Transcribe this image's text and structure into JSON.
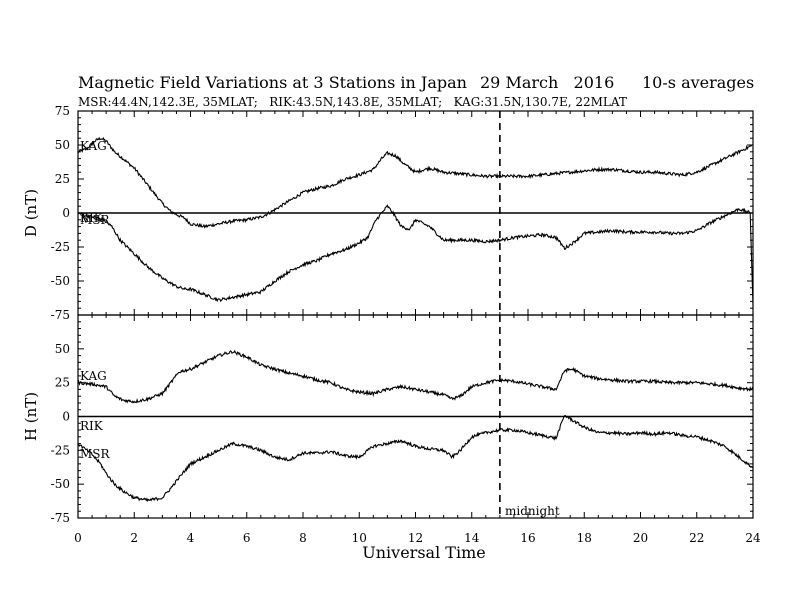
{
  "chart_data": {
    "type": "line",
    "title": "Magnetic Field Variations at 3 Stations in Japan",
    "date": "29 March   2016",
    "averaging": "10-s averages",
    "subtitle": "MSR:44.4N,142.3E, 35MLAT;   RIK:43.5N,143.8E, 35MLAT;   KAG:31.5N,130.7E, 22MLAT",
    "xlabel": "Universal Time",
    "xlim": [
      0,
      24
    ],
    "xticks": [
      "0",
      "2",
      "4",
      "6",
      "8",
      "10",
      "12",
      "14",
      "16",
      "18",
      "20",
      "22",
      "24"
    ],
    "annotation": {
      "x": 15,
      "label": "midnight"
    },
    "panels": [
      {
        "ylabel": "D (nT)",
        "ylim": [
          -75,
          75
        ],
        "yticks": [
          "75",
          "50",
          "25",
          "0",
          "-25",
          "-50",
          "-75"
        ],
        "labels": [
          {
            "text": "KAG"
          },
          {
            "text": "MSR"
          },
          {
            "text": "RIK"
          }
        ],
        "series": [
          {
            "x": [
              0,
              0.3,
              0.6,
              0.8,
              1.0,
              1.3,
              1.6,
              2.0,
              2.5,
              3.0,
              3.3,
              3.6,
              3.8,
              4.0,
              4.5,
              5.0,
              5.5,
              6.0,
              6.5,
              6.8,
              7.2,
              7.6,
              8.0,
              8.5,
              9.0,
              9.5,
              10.0,
              10.5,
              10.8,
              11.0,
              11.3,
              11.6,
              12.0,
              12.5,
              13.0,
              13.5,
              14.0,
              14.5,
              15.0,
              15.5,
              16.0,
              16.5,
              17.0,
              17.5,
              18.0,
              18.5,
              19.0,
              19.5,
              20.0,
              20.5,
              21.0,
              21.5,
              22.0,
              22.5,
              23.0,
              23.5,
              24.0
            ],
            "y": [
              45,
              47,
              53,
              55,
              53,
              45,
              40,
              33,
              20,
              7,
              1,
              -2,
              -4,
              -8,
              -10,
              -8,
              -6,
              -5,
              -3,
              0,
              5,
              10,
              15,
              18,
              20,
              25,
              28,
              32,
              40,
              44,
              42,
              36,
              30,
              33,
              30,
              29,
              28,
              27,
              27,
              27,
              27,
              28,
              29,
              30,
              31,
              32,
              32,
              31,
              30,
              30,
              29,
              28,
              30,
              35,
              40,
              45,
              50
            ]
          },
          {
            "x": [
              0,
              0.3,
              0.6,
              0.9,
              1.2,
              1.5,
              2.0,
              2.5,
              3.0,
              3.5,
              3.8,
              4.0,
              4.5,
              5.0,
              5.5,
              6.0,
              6.5,
              7.0,
              7.5,
              8.0,
              8.5,
              9.0,
              9.5,
              10.0,
              10.3,
              10.6,
              10.8,
              11.0,
              11.2,
              11.5,
              11.8,
              12.0,
              12.3,
              12.5,
              13.0,
              13.5,
              14.0,
              14.5,
              15.0,
              15.5,
              16.0,
              16.5,
              17.0,
              17.3,
              17.6,
              18.0,
              18.5,
              19.0,
              19.5,
              20.0,
              20.5,
              21.0,
              21.5,
              22.0,
              22.5,
              23.0,
              23.5,
              23.9,
              24.0
            ],
            "y": [
              0,
              -2,
              -3,
              -5,
              -10,
              -20,
              -30,
              -40,
              -48,
              -54,
              -56,
              -56,
              -60,
              -64,
              -62,
              -60,
              -58,
              -50,
              -43,
              -38,
              -35,
              -30,
              -27,
              -22,
              -18,
              -5,
              0,
              5,
              0,
              -10,
              -12,
              -5,
              -8,
              -10,
              -20,
              -20,
              -20,
              -21,
              -20,
              -18,
              -17,
              -16,
              -18,
              -26,
              -22,
              -15,
              -14,
              -13,
              -14,
              -14,
              -14,
              -15,
              -15,
              -13,
              -7,
              -2,
              3,
              0,
              -68
            ]
          }
        ]
      },
      {
        "ylabel": "H (nT)",
        "ylim": [
          -75,
          75
        ],
        "yticks": [
          "50",
          "25",
          "0",
          "-25",
          "-50",
          "-75"
        ],
        "labels": [
          {
            "text": "KAG"
          },
          {
            "text": "RIK"
          },
          {
            "text": "MSR"
          }
        ],
        "series": [
          {
            "x": [
              0,
              0.5,
              1.0,
              1.3,
              1.6,
              2.0,
              2.5,
              3.0,
              3.3,
              3.6,
              4.0,
              4.5,
              5.0,
              5.5,
              6.0,
              6.5,
              7.0,
              7.5,
              8.0,
              8.5,
              9.0,
              9.5,
              10.0,
              10.5,
              11.0,
              11.5,
              12.0,
              12.5,
              13.0,
              13.3,
              13.6,
              14.0,
              14.5,
              15.0,
              15.5,
              16.0,
              16.5,
              17.0,
              17.3,
              17.6,
              18.0,
              18.5,
              19.0,
              19.5,
              20.0,
              20.5,
              21.0,
              21.5,
              22.0,
              22.5,
              23.0,
              23.5,
              24.0
            ],
            "y": [
              25,
              24,
              22,
              15,
              12,
              11,
              13,
              17,
              25,
              33,
              35,
              40,
              45,
              48,
              44,
              38,
              35,
              32,
              30,
              27,
              25,
              20,
              18,
              17,
              20,
              22,
              20,
              18,
              16,
              13,
              15,
              22,
              25,
              27,
              26,
              24,
              22,
              20,
              34,
              35,
              30,
              28,
              27,
              26,
              26,
              26,
              25,
              25,
              25,
              24,
              23,
              21,
              20
            ]
          },
          {
            "x": [
              0,
              0.5,
              0.8,
              1.0,
              1.3,
              1.6,
              2.0,
              2.5,
              3.0,
              3.3,
              3.6,
              4.0,
              4.5,
              5.0,
              5.5,
              6.0,
              6.5,
              7.0,
              7.5,
              8.0,
              8.5,
              9.0,
              9.5,
              10.0,
              10.5,
              11.0,
              11.5,
              12.0,
              12.5,
              13.0,
              13.3,
              13.6,
              14.0,
              14.5,
              15.0,
              15.5,
              16.0,
              16.5,
              17.0,
              17.3,
              17.6,
              18.0,
              18.5,
              19.0,
              19.5,
              20.0,
              20.5,
              21.0,
              21.5,
              22.0,
              22.5,
              23.0,
              23.5,
              24.0
            ],
            "y": [
              -20,
              -28,
              -35,
              -42,
              -50,
              -55,
              -60,
              -62,
              -60,
              -53,
              -45,
              -35,
              -30,
              -25,
              -20,
              -22,
              -25,
              -30,
              -32,
              -27,
              -27,
              -26,
              -29,
              -30,
              -22,
              -20,
              -18,
              -22,
              -24,
              -25,
              -30,
              -25,
              -15,
              -12,
              -10,
              -10,
              -12,
              -14,
              -16,
              1,
              -3,
              -8,
              -12,
              -12,
              -13,
              -12,
              -13,
              -12,
              -14,
              -15,
              -18,
              -22,
              -30,
              -38
            ]
          }
        ]
      }
    ]
  }
}
